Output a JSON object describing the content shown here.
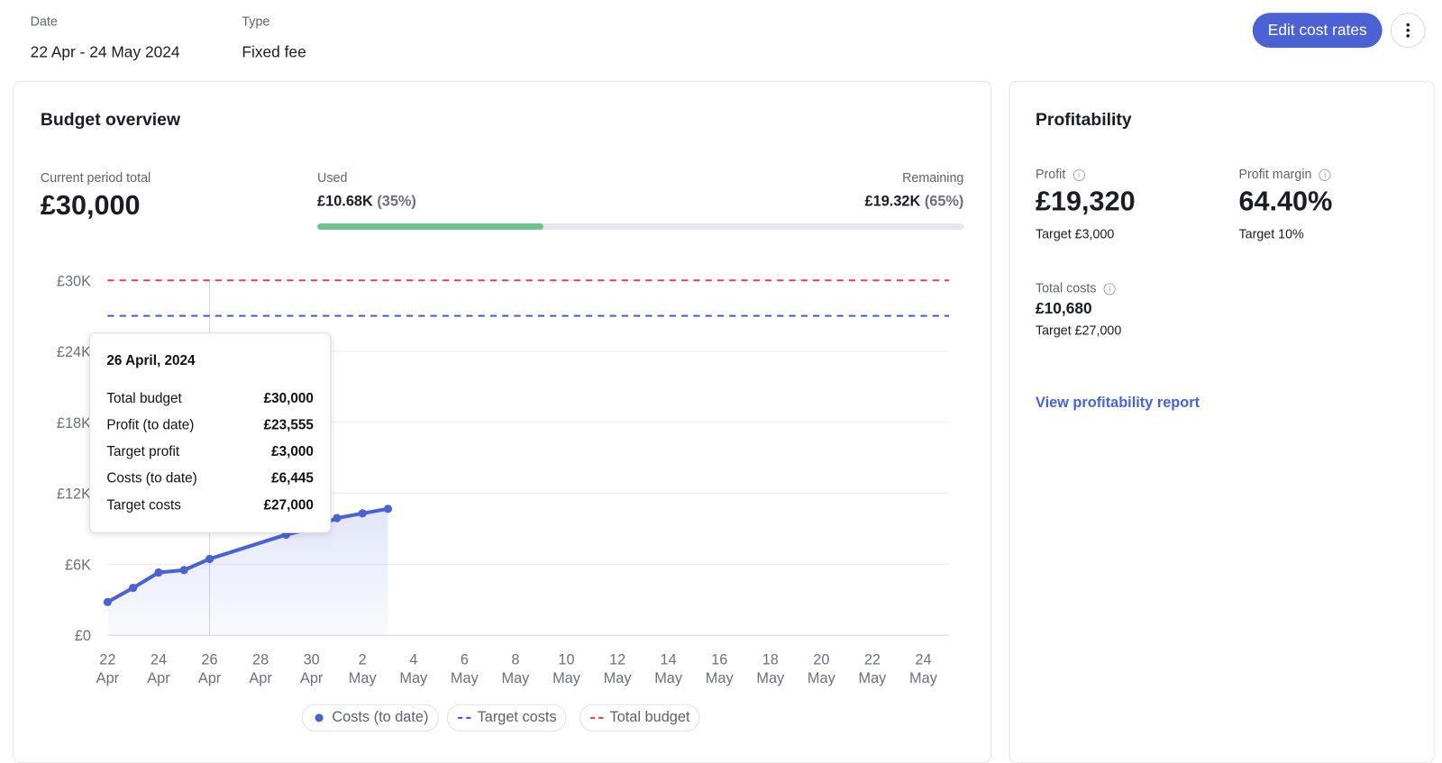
{
  "header": {
    "date": {
      "label": "Date",
      "value": "22 Apr - 24 May 2024"
    },
    "type": {
      "label": "Type",
      "value": "Fixed fee"
    },
    "edit_button": "Edit cost rates"
  },
  "budget": {
    "title": "Budget overview",
    "current_label": "Current period total",
    "current_value": "£30,000",
    "used": {
      "label": "Used",
      "amount": "£10.68K",
      "percent_label": "(35%)",
      "percent": 35
    },
    "remaining": {
      "label": "Remaining",
      "amount": "£19.32K",
      "percent_label": "(65%)",
      "percent": 65
    }
  },
  "chart_data": {
    "type": "line",
    "x": [
      "22 Apr",
      "23 Apr",
      "24 Apr",
      "25 Apr",
      "26 Apr",
      "29 Apr",
      "30 Apr",
      "1 May",
      "2 May",
      "3 May"
    ],
    "series": [
      {
        "name": "Costs (to date)",
        "color": "#4a63d3",
        "values": [
          2800,
          4000,
          5300,
          5500,
          6445,
          8500,
          9000,
          9900,
          10300,
          10680
        ]
      }
    ],
    "reference_lines": [
      {
        "name": "Target costs",
        "color": "#3f5bd6",
        "value": 27000
      },
      {
        "name": "Total budget",
        "color": "#e0434b",
        "value": 30000
      }
    ],
    "xlim": [
      "22 Apr",
      "24 May"
    ],
    "xticks": [
      "22 Apr",
      "24 Apr",
      "26 Apr",
      "28 Apr",
      "30 Apr",
      "2 May",
      "4 May",
      "6 May",
      "8 May",
      "10 May",
      "12 May",
      "14 May",
      "16 May",
      "18 May",
      "20 May",
      "22 May",
      "24 May"
    ],
    "ylim": [
      0,
      30000
    ],
    "yticks": [
      {
        "value": 0,
        "label": "£0"
      },
      {
        "value": 6000,
        "label": "£6K"
      },
      {
        "value": 12000,
        "label": "£12K"
      },
      {
        "value": 18000,
        "label": "£18K"
      },
      {
        "value": 24000,
        "label": "£24K"
      },
      {
        "value": 30000,
        "label": "£30K"
      }
    ],
    "grid": true
  },
  "tooltip": {
    "title": "26 April, 2024",
    "rows": [
      [
        "Total budget",
        "£30,000"
      ],
      [
        "Profit (to date)",
        "£23,555"
      ],
      [
        "Target profit",
        "£3,000"
      ],
      [
        "Costs (to date)",
        "£6,445"
      ],
      [
        "Target costs",
        "£27,000"
      ]
    ]
  },
  "profitability": {
    "title": "Profitability",
    "profit": {
      "label": "Profit",
      "value": "£19,320",
      "target": "Target £3,000"
    },
    "margin": {
      "label": "Profit margin",
      "value": "64.40%",
      "target": "Target 10%"
    },
    "costs": {
      "label": "Total costs",
      "value": "£10,680",
      "target": "Target £27,000"
    },
    "link": "View profitability report"
  }
}
